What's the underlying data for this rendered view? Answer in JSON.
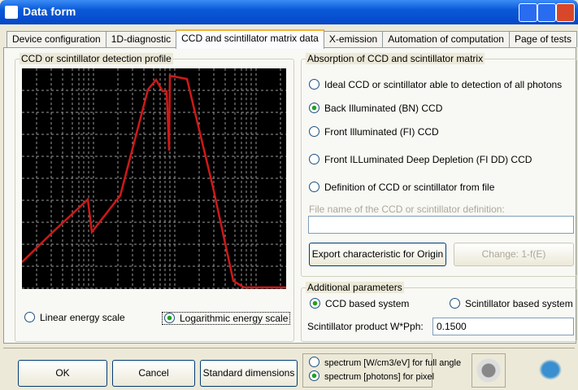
{
  "window": {
    "title": "Data form"
  },
  "tabs": [
    "Device configuration",
    "1D-diagnostic",
    "CCD and scintillator matrix data",
    "X-emission",
    "Automation of computation",
    "Page of tests"
  ],
  "selected_tab": 2,
  "profile_group": {
    "title": "CCD or scintillator detection profile",
    "radios": [
      {
        "label": "Linear energy scale",
        "checked": false
      },
      {
        "label": "Logarithmic energy scale",
        "checked": true
      }
    ]
  },
  "absorption_group": {
    "title": "Absorption of CCD and scintillator matrix",
    "radios": [
      {
        "label": "Ideal CCD or scintillator able to detection of all photons",
        "checked": false
      },
      {
        "label": "Back Illuminated (BN) CCD",
        "checked": true
      },
      {
        "label": "Front Illuminated (FI) CCD",
        "checked": false
      },
      {
        "label": "Front ILLuminated Deep Depletion (FI DD) CCD",
        "checked": false
      },
      {
        "label": "Definition of CCD or scintillator from file",
        "checked": false
      }
    ],
    "file_label": "File name of the CCD or scintillator definition:",
    "buttons": [
      "Export characteristic for Origin",
      "Change: 1-f(E)"
    ]
  },
  "additional_group": {
    "title": "Additional parameters",
    "radios": [
      {
        "label": "CCD based system",
        "checked": true
      },
      {
        "label": "Scintillator based system",
        "checked": false
      }
    ],
    "product_label": "Scintillator product W*Pph:",
    "product_value": "0.1500"
  },
  "bottom": {
    "buttons": [
      "OK",
      "Cancel",
      "Standard dimensions"
    ],
    "radios": [
      {
        "label": "spectrum [W/cm3/eV] for full angle",
        "checked": false
      },
      {
        "label": "spectrum [photons] for pixel",
        "checked": true
      }
    ]
  }
}
